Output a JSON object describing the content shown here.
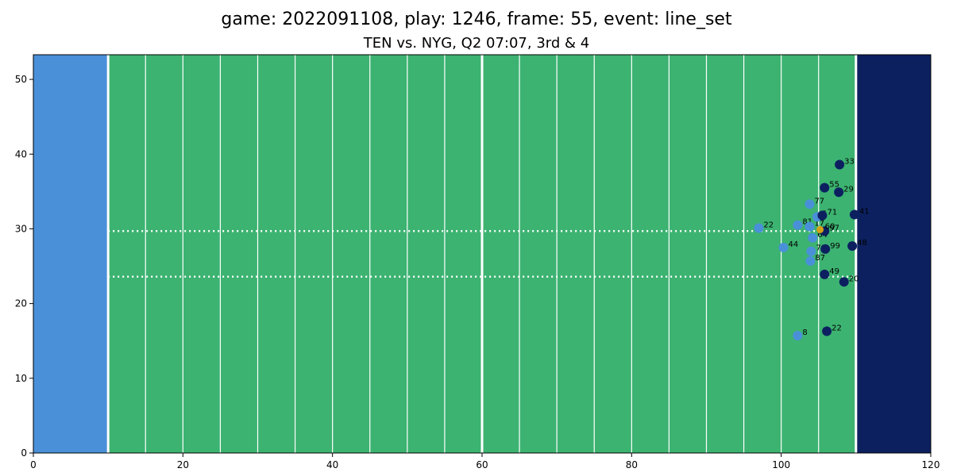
{
  "chart_data": {
    "type": "scatter",
    "title": "game: 2022091108, play: 1246, frame: 55, event: line_set",
    "subtitle": "TEN vs. NYG, Q2 07:07, 3rd & 4",
    "xlim": [
      0,
      120
    ],
    "ylim": [
      0,
      53.3
    ],
    "x_ticks": [
      0,
      20,
      40,
      60,
      80,
      100,
      120
    ],
    "y_ticks": [
      0,
      10,
      20,
      30,
      40,
      50
    ],
    "field": {
      "field_color": "#3cb371",
      "left_endzone": {
        "x": [
          0,
          10
        ],
        "color": "#4a90d9"
      },
      "right_endzone": {
        "x": [
          110,
          120
        ],
        "color": "#0c2060"
      },
      "yard_lines": [
        10,
        15,
        20,
        25,
        30,
        35,
        40,
        45,
        50,
        55,
        60,
        65,
        70,
        75,
        80,
        85,
        90,
        95,
        100,
        105,
        110
      ],
      "major_lines": [
        10,
        60,
        110
      ],
      "hash_lines_y": [
        23.6,
        29.7
      ],
      "line_color": "#ffffff"
    },
    "team_colors": {
      "home": "#4a90d9",
      "away": "#0c2060",
      "football": "#d4a017"
    },
    "series": [
      {
        "team": "home",
        "color": "#4a90d9",
        "points": [
          {
            "x": 103.8,
            "y": 33.3,
            "label": "77"
          },
          {
            "x": 97.0,
            "y": 30.1,
            "label": "22"
          },
          {
            "x": 102.2,
            "y": 30.5,
            "label": "81"
          },
          {
            "x": 103.8,
            "y": 30.3,
            "label": "17"
          },
          {
            "x": 104.8,
            "y": 31.6,
            "label": "5"
          },
          {
            "x": 104.2,
            "y": 28.8,
            "label": "64"
          },
          {
            "x": 100.3,
            "y": 27.5,
            "label": "44"
          },
          {
            "x": 104.0,
            "y": 27.0,
            "label": "78"
          },
          {
            "x": 103.9,
            "y": 25.7,
            "label": "87"
          },
          {
            "x": 102.2,
            "y": 15.7,
            "label": "8"
          }
        ]
      },
      {
        "team": "away",
        "color": "#0c2060",
        "points": [
          {
            "x": 107.8,
            "y": 38.6,
            "label": "33"
          },
          {
            "x": 105.8,
            "y": 35.5,
            "label": "55"
          },
          {
            "x": 107.7,
            "y": 34.9,
            "label": "29"
          },
          {
            "x": 105.5,
            "y": 31.8,
            "label": "71"
          },
          {
            "x": 109.8,
            "y": 31.9,
            "label": "41"
          },
          {
            "x": 105.8,
            "y": 29.7,
            "label": "97"
          },
          {
            "x": 109.5,
            "y": 27.7,
            "label": "48"
          },
          {
            "x": 105.9,
            "y": 27.3,
            "label": "99"
          },
          {
            "x": 105.8,
            "y": 23.9,
            "label": "49"
          },
          {
            "x": 108.4,
            "y": 22.9,
            "label": "20"
          },
          {
            "x": 106.1,
            "y": 16.3,
            "label": "22"
          }
        ]
      },
      {
        "team": "football",
        "color": "#d4a017",
        "points": [
          {
            "x": 105.2,
            "y": 29.9,
            "label": "60"
          }
        ]
      }
    ]
  }
}
